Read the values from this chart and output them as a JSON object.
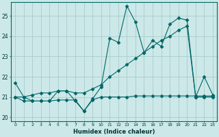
{
  "xlabel": "Humidex (Indice chaleur)",
  "background_color": "#cce8e8",
  "grid_color": "#aacccc",
  "line_color": "#006666",
  "xlim": [
    -0.5,
    23.5
  ],
  "ylim": [
    19.8,
    25.7
  ],
  "yticks": [
    20,
    21,
    22,
    23,
    24,
    25
  ],
  "xticks": [
    0,
    1,
    2,
    3,
    4,
    5,
    6,
    7,
    8,
    9,
    10,
    11,
    12,
    13,
    14,
    15,
    16,
    17,
    18,
    19,
    20,
    21,
    22,
    23
  ],
  "series1": [
    21.7,
    21.0,
    20.8,
    20.8,
    20.8,
    21.3,
    21.3,
    20.8,
    20.3,
    20.9,
    21.5,
    23.9,
    23.7,
    25.5,
    24.7,
    23.2,
    23.8,
    23.5,
    24.6,
    24.9,
    24.8,
    21.0,
    22.0,
    21.1
  ],
  "series2": [
    21.0,
    21.0,
    21.1,
    21.2,
    21.2,
    21.3,
    21.3,
    21.2,
    21.2,
    21.4,
    21.6,
    22.0,
    22.3,
    22.6,
    22.9,
    23.2,
    23.5,
    23.8,
    24.0,
    24.3,
    24.5,
    21.0,
    21.0,
    21.0
  ],
  "series3": [
    21.0,
    20.8,
    20.8,
    20.8,
    20.8,
    20.85,
    20.85,
    20.85,
    20.3,
    20.85,
    21.0,
    21.0,
    21.0,
    21.0,
    21.05,
    21.05,
    21.05,
    21.05,
    21.05,
    21.05,
    21.05,
    21.05,
    21.05,
    21.05
  ]
}
